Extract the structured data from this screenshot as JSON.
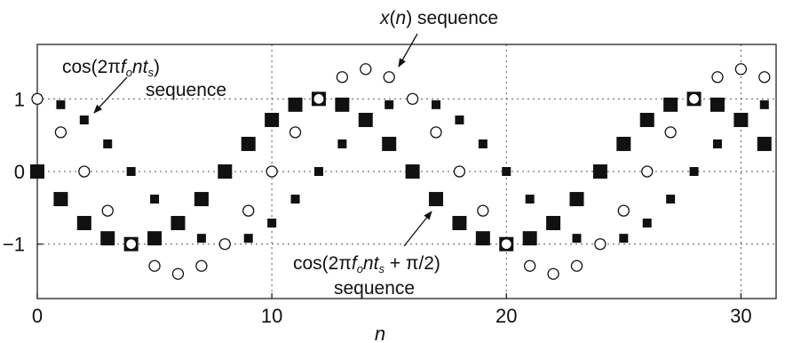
{
  "chart_data": {
    "type": "scatter",
    "title": "",
    "xlabel": "n",
    "ylabel": "",
    "xlim": [
      0,
      31.5
    ],
    "ylim": [
      -1.75,
      1.75
    ],
    "grid": true,
    "x_ticks": [
      0,
      10,
      20,
      30
    ],
    "x_tick_labels": [
      "0",
      "10",
      "20",
      "30"
    ],
    "y_ticks": [
      1,
      0,
      -1
    ],
    "y_tick_labels": [
      "1",
      "0",
      "−1"
    ],
    "annotations": {
      "xn": {
        "pre": "x",
        "n": "n",
        "post": " sequence"
      },
      "cos": {
        "l1a": "cos(2π",
        "f": "f",
        "o": "o",
        "nt": "nt",
        "s": "s",
        "l1b": ")",
        "l2": "sequence"
      },
      "cos_shift": {
        "l1a": "cos(2π",
        "f": "f",
        "o": "o",
        "nt": "nt",
        "s": "s",
        "l1b": " + π/2)",
        "l2": "sequence"
      }
    },
    "series": [
      {
        "marker": "small-filled-square",
        "x": [
          0,
          1,
          2,
          3,
          4,
          5,
          6,
          7,
          8,
          9,
          10,
          11,
          12,
          13,
          14,
          15,
          16,
          17,
          18,
          19,
          20,
          21,
          22,
          23,
          24,
          25,
          26,
          27,
          28,
          29,
          30,
          31
        ],
        "values": [
          1,
          0.92,
          0.71,
          0.38,
          0,
          -0.38,
          -0.71,
          -0.92,
          -1,
          -0.92,
          -0.71,
          -0.38,
          0,
          0.38,
          0.71,
          0.92,
          1,
          0.92,
          0.71,
          0.38,
          0,
          -0.38,
          -0.71,
          -0.92,
          -1,
          -0.92,
          -0.71,
          -0.38,
          0,
          0.38,
          0.71,
          0.92
        ]
      },
      {
        "marker": "large-filled-square",
        "x": [
          0,
          1,
          2,
          3,
          4,
          5,
          6,
          7,
          8,
          9,
          10,
          11,
          12,
          13,
          14,
          15,
          16,
          17,
          18,
          19,
          20,
          21,
          22,
          23,
          24,
          25,
          26,
          27,
          28,
          29,
          30,
          31
        ],
        "values": [
          0,
          -0.38,
          -0.71,
          -0.92,
          -1,
          -0.92,
          -0.71,
          -0.38,
          0,
          0.38,
          0.71,
          0.92,
          1,
          0.92,
          0.71,
          0.38,
          0,
          -0.38,
          -0.71,
          -0.92,
          -1,
          -0.92,
          -0.71,
          -0.38,
          0,
          0.38,
          0.71,
          0.92,
          1,
          0.92,
          0.71,
          0.38
        ]
      },
      {
        "marker": "open-circle",
        "x": [
          0,
          1,
          2,
          3,
          4,
          5,
          6,
          7,
          8,
          9,
          10,
          11,
          12,
          13,
          14,
          15,
          16,
          17,
          18,
          19,
          20,
          21,
          22,
          23,
          24,
          25,
          26,
          27,
          28,
          29,
          30,
          31
        ],
        "values": [
          1,
          0.54,
          0,
          -0.54,
          -1,
          -1.3,
          -1.41,
          -1.3,
          -1,
          -0.54,
          0,
          0.54,
          1,
          1.3,
          1.41,
          1.3,
          1,
          0.54,
          0,
          -0.54,
          -1,
          -1.3,
          -1.41,
          -1.3,
          -1,
          -0.54,
          0,
          0.54,
          1,
          1.3,
          1.41,
          1.3
        ]
      }
    ]
  }
}
